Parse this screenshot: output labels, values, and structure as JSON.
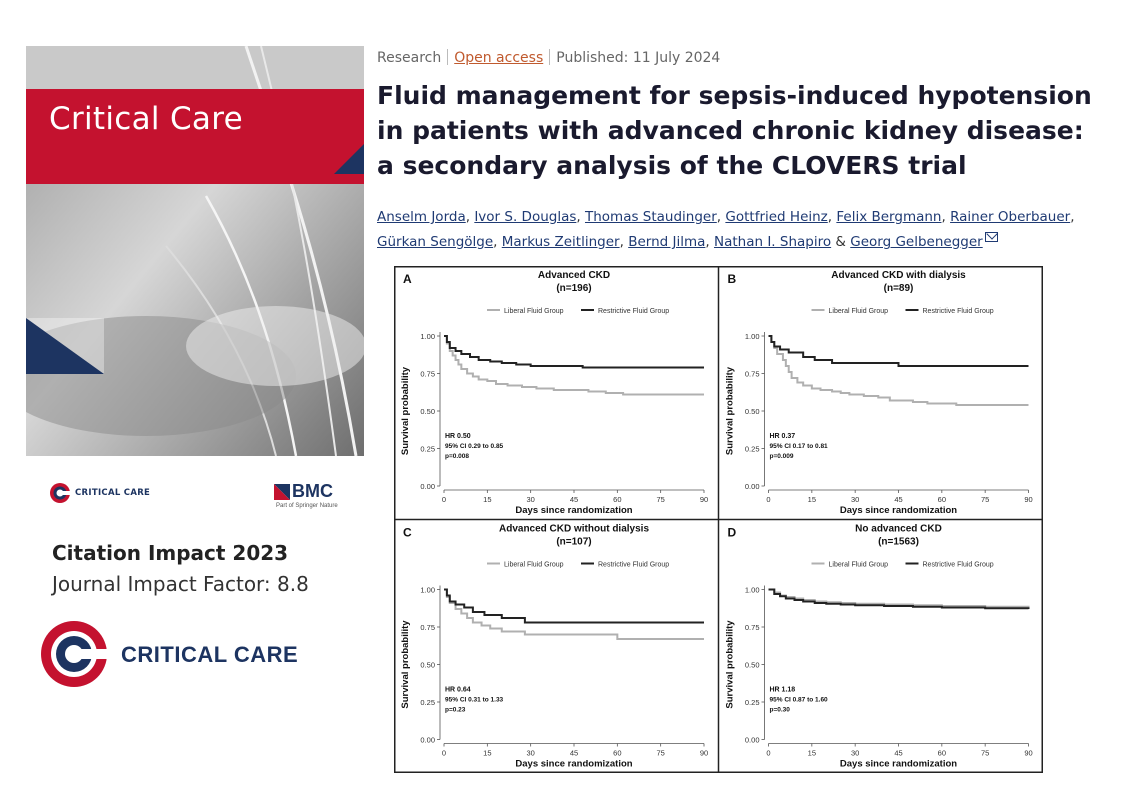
{
  "journal": {
    "cover_title": "Critical Care",
    "small_logo_text": "CRITICAL CARE",
    "publisher_logo": "BMC",
    "publisher_sub": "Part of Springer Nature",
    "big_logo_text": "CRITICAL CARE",
    "impact_title": "Citation Impact 2023",
    "impact_value": "Journal Impact Factor: 8.8",
    "brand_red": "#c4122f",
    "brand_navy": "#1d3461"
  },
  "article": {
    "type": "Research",
    "access": "Open access",
    "published": "Published: 11 July 2024",
    "title": "Fluid management for sepsis-induced hypotension in patients with advanced chronic kidney disease: a secondary analysis of the CLOVERS trial",
    "authors": [
      "Anselm Jorda",
      "Ivor S. Douglas",
      "Thomas Staudinger",
      "Gottfried Heinz",
      "Felix Bergmann",
      "Rainer Oberbauer",
      "Gürkan Sengölge",
      "Markus Zeitlinger",
      "Bernd Jilma",
      "Nathan I. Shapiro",
      "Georg Gelbenegger"
    ],
    "author_separator": ", ",
    "author_last_separator": " & ",
    "email_icon": "envelope-icon"
  },
  "chart_data": [
    {
      "type": "line",
      "panel": "A",
      "title": "Advanced CKD",
      "subtitle": "(n=196)",
      "xlabel": "Days since randomization",
      "ylabel": "Survival probability",
      "xticks": [
        0,
        15,
        30,
        45,
        60,
        75,
        90
      ],
      "yticks": [
        "0.00",
        "0.25",
        "0.50",
        "0.75",
        "1.00"
      ],
      "xlim": [
        0,
        90
      ],
      "ylim": [
        0,
        1
      ],
      "legend": "top",
      "stats": [
        "HR 0.50",
        "95% CI 0.29 to 0.85",
        "p=0.008"
      ],
      "series": [
        {
          "name": "Liberal Fluid Group",
          "color": "#b0b0b0",
          "x": [
            0,
            1,
            2,
            3,
            4,
            5,
            6,
            8,
            10,
            12,
            15,
            18,
            22,
            27,
            32,
            38,
            45,
            50,
            56,
            62,
            90
          ],
          "y": [
            1.0,
            0.95,
            0.9,
            0.87,
            0.84,
            0.81,
            0.78,
            0.75,
            0.73,
            0.71,
            0.7,
            0.68,
            0.67,
            0.66,
            0.65,
            0.64,
            0.64,
            0.63,
            0.62,
            0.61,
            0.61
          ]
        },
        {
          "name": "Restrictive Fluid Group",
          "color": "#222222",
          "x": [
            0,
            1,
            2,
            4,
            6,
            9,
            12,
            16,
            20,
            25,
            30,
            48,
            90
          ],
          "y": [
            1.0,
            0.96,
            0.92,
            0.9,
            0.88,
            0.86,
            0.84,
            0.83,
            0.82,
            0.81,
            0.8,
            0.79,
            0.79
          ]
        }
      ]
    },
    {
      "type": "line",
      "panel": "B",
      "title": "Advanced CKD with dialysis",
      "subtitle": "(n=89)",
      "xlabel": "Days since randomization",
      "ylabel": "Survival probability",
      "xticks": [
        0,
        15,
        30,
        45,
        60,
        75,
        90
      ],
      "yticks": [
        "0.00",
        "0.25",
        "0.50",
        "0.75",
        "1.00"
      ],
      "xlim": [
        0,
        90
      ],
      "ylim": [
        0,
        1
      ],
      "legend": "top",
      "stats": [
        "HR 0.37",
        "95% CI 0.17 to 0.81",
        "p=0.009"
      ],
      "series": [
        {
          "name": "Liberal Fluid Group",
          "color": "#b0b0b0",
          "x": [
            0,
            1,
            2,
            3,
            5,
            6,
            7,
            8,
            10,
            12,
            15,
            18,
            22,
            25,
            28,
            33,
            38,
            42,
            50,
            55,
            59,
            65,
            90
          ],
          "y": [
            1.0,
            0.96,
            0.92,
            0.88,
            0.84,
            0.8,
            0.76,
            0.72,
            0.69,
            0.67,
            0.65,
            0.64,
            0.63,
            0.62,
            0.61,
            0.6,
            0.59,
            0.57,
            0.56,
            0.55,
            0.55,
            0.54,
            0.54
          ]
        },
        {
          "name": "Restrictive Fluid Group",
          "color": "#222222",
          "x": [
            0,
            1,
            2,
            4,
            7,
            12,
            16,
            22,
            45,
            90
          ],
          "y": [
            1.0,
            0.96,
            0.93,
            0.91,
            0.89,
            0.86,
            0.84,
            0.82,
            0.8,
            0.8
          ]
        }
      ]
    },
    {
      "type": "line",
      "panel": "C",
      "title": "Advanced CKD without dialysis",
      "subtitle": "(n=107)",
      "xlabel": "Days since randomization",
      "ylabel": "Survival probability",
      "xticks": [
        0,
        15,
        30,
        45,
        60,
        75,
        90
      ],
      "yticks": [
        "0.00",
        "0.25",
        "0.50",
        "0.75",
        "1.00"
      ],
      "xlim": [
        0,
        90
      ],
      "ylim": [
        0,
        1
      ],
      "legend": "top",
      "stats": [
        "HR 0.64",
        "95% CI 0.31 to 1.33",
        "p=0.23"
      ],
      "series": [
        {
          "name": "Liberal Fluid Group",
          "color": "#b0b0b0",
          "x": [
            0,
            1,
            2,
            4,
            6,
            8,
            10,
            13,
            16,
            20,
            28,
            60,
            90
          ],
          "y": [
            1.0,
            0.95,
            0.91,
            0.87,
            0.84,
            0.81,
            0.78,
            0.76,
            0.74,
            0.72,
            0.7,
            0.67,
            0.67
          ]
        },
        {
          "name": "Restrictive Fluid Group",
          "color": "#222222",
          "x": [
            0,
            1,
            2,
            4,
            7,
            10,
            14,
            20,
            28,
            90
          ],
          "y": [
            1.0,
            0.96,
            0.92,
            0.9,
            0.88,
            0.85,
            0.83,
            0.81,
            0.78,
            0.78
          ]
        }
      ]
    },
    {
      "type": "line",
      "panel": "D",
      "title": "No advanced CKD",
      "subtitle": "(n=1563)",
      "xlabel": "Days since randomization",
      "ylabel": "Survival probability",
      "xticks": [
        0,
        15,
        30,
        45,
        60,
        75,
        90
      ],
      "yticks": [
        "0.00",
        "0.25",
        "0.50",
        "0.75",
        "1.00"
      ],
      "xlim": [
        0,
        90
      ],
      "ylim": [
        0,
        1
      ],
      "legend": "top",
      "stats": [
        "HR 1.18",
        "95% CI 0.87 to 1.60",
        "p=0.30"
      ],
      "series": [
        {
          "name": "Liberal Fluid Group",
          "color": "#b0b0b0",
          "x": [
            0,
            2,
            4,
            6,
            9,
            12,
            16,
            20,
            25,
            30,
            40,
            50,
            60,
            75,
            90
          ],
          "y": [
            1.0,
            0.98,
            0.96,
            0.95,
            0.94,
            0.93,
            0.92,
            0.915,
            0.91,
            0.905,
            0.9,
            0.895,
            0.89,
            0.885,
            0.88
          ]
        },
        {
          "name": "Restrictive Fluid Group",
          "color": "#222222",
          "x": [
            0,
            2,
            4,
            6,
            9,
            12,
            16,
            20,
            25,
            30,
            40,
            50,
            60,
            75,
            90
          ],
          "y": [
            1.0,
            0.97,
            0.955,
            0.94,
            0.93,
            0.92,
            0.91,
            0.905,
            0.9,
            0.895,
            0.89,
            0.885,
            0.88,
            0.875,
            0.87
          ]
        }
      ]
    }
  ]
}
